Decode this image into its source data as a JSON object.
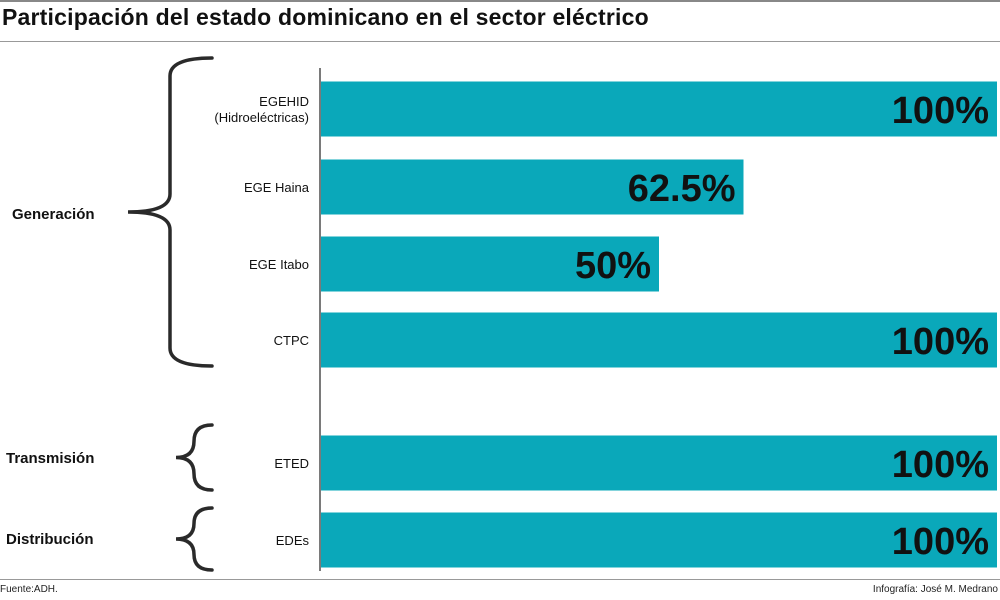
{
  "header": {
    "title": "Participación del estado dominicano en el sector eléctrico"
  },
  "footer": {
    "source": "Fuente:ADH.",
    "credit": "Infografía: José M. Medrano"
  },
  "colors": {
    "bar": "#0aa8ba",
    "text": "#111111",
    "axis": "#222222",
    "brace": "#2a2a2a"
  },
  "chart_data": {
    "type": "bar",
    "orientation": "horizontal",
    "categories": [
      "EGEHID (Hidroeléctricas)",
      "EGE Haina",
      "EGE Itabo",
      "CTPC",
      "ETED",
      "EDEs"
    ],
    "values": [
      100,
      62.5,
      50,
      100,
      100,
      100
    ],
    "value_labels": [
      "100%",
      "62.5%",
      "50%",
      "100%",
      "100%",
      "100%"
    ],
    "xlim": [
      0,
      100
    ],
    "groups": [
      {
        "name": "Generación",
        "categories": [
          "EGEHID (Hidroeléctricas)",
          "EGE Haina",
          "EGE Itabo",
          "CTPC"
        ]
      },
      {
        "name": "Transmisión",
        "categories": [
          "ETED"
        ]
      },
      {
        "name": "Distribución",
        "categories": [
          "EDEs"
        ]
      }
    ]
  }
}
